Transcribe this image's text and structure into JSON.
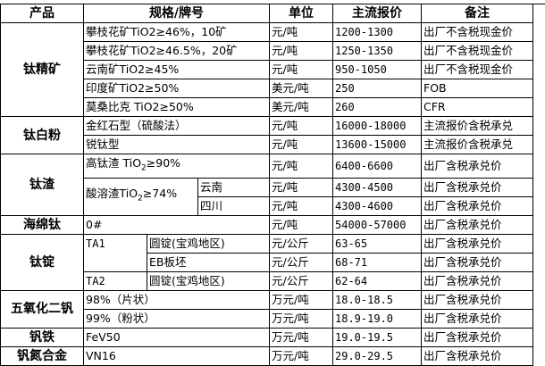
{
  "headers": [
    "产品",
    "规格/牌号",
    "单位",
    "主流报价",
    "备注"
  ],
  "groups": {
    "titanium_concentrate": {
      "product": "钛精矿",
      "rows": [
        {
          "spec": "攀枝花矿TiO2≥46%，10矿",
          "unit": "元/吨",
          "price": "1200-1300",
          "note": "出厂不含税现金价"
        },
        {
          "spec": "攀枝花矿TiO2≥46.5%，20矿",
          "unit": "元/吨",
          "price": "1250-1350",
          "note": "出厂不含税现金价"
        },
        {
          "spec": "云南矿TiO2≥45%",
          "unit": "元/吨",
          "price": "950-1050",
          "note": "出厂不含税现金价"
        },
        {
          "spec": "印度矿TiO2≥50%",
          "unit": "美元/吨",
          "price": "250",
          "note": "FOB"
        },
        {
          "spec": "莫桑比克 TiO2≥50%",
          "unit": "美元/吨",
          "price": "260",
          "note": "CFR"
        }
      ]
    },
    "titanium_dioxide": {
      "product": "钛白粉",
      "rows": [
        {
          "spec": "金红石型（硫酸法）",
          "unit": "元/吨",
          "price": "16000-18000",
          "note": "主流报价含税承兑"
        },
        {
          "spec": "锐钛型",
          "unit": "元/吨",
          "price": "13600-15000",
          "note": "主流报价含税承兑"
        }
      ]
    },
    "titanium_slag": {
      "product": "钛渣",
      "rows": [
        {
          "spec": "高钛渣 TiO",
          "sub": "2",
          "spec_tail": "≥90%",
          "unit": "元/吨",
          "price": "6400-6600",
          "note": "出厂含税承兑价"
        },
        {
          "spec": "酸溶渣TiO",
          "sub": "2",
          "spec_tail": "≥74%",
          "region": "云南",
          "unit": "元/吨",
          "price": "4300-4500",
          "note": "出厂含税承兑价"
        },
        {
          "region": "四川",
          "unit": "元/吨",
          "price": "4300-4600",
          "note": "出厂含税承兑价"
        }
      ]
    },
    "sponge_titanium": {
      "product": "海绵钛",
      "rows": [
        {
          "spec": "0#",
          "unit": "元/吨",
          "price": "54000-57000",
          "note": "出厂含税承兑价"
        }
      ]
    },
    "titanium_ingot": {
      "product": "钛锭",
      "rows": [
        {
          "grade": "TA1",
          "form": "圆锭(宝鸡地区)",
          "unit": "元/公斤",
          "price": "63-65",
          "note": "出厂含税承兑价"
        },
        {
          "form": "EB板坯",
          "unit": "元/公斤",
          "price": "68-71",
          "note": "出厂含税承兑价"
        },
        {
          "grade": "TA2",
          "form": "圆锭(宝鸡地区)",
          "unit": "元/公斤",
          "price": "62-64",
          "note": "出厂含税承兑价"
        }
      ]
    },
    "vanadium_pentoxide": {
      "product": "五氧化二钒",
      "rows": [
        {
          "spec": "98%（片状）",
          "unit": "万元/吨",
          "price": "18.0-18.5",
          "note": "出厂含税承兑价"
        },
        {
          "spec": "99%（粉状）",
          "unit": "万元/吨",
          "price": "18.9-19.0",
          "note": "出厂含税承兑价"
        }
      ]
    },
    "ferrovanadium": {
      "product": "钒铁",
      "rows": [
        {
          "spec": "FeV50",
          "unit": "万元/吨",
          "price": "19.0-19.5",
          "note": "出厂含税承兑价"
        }
      ]
    },
    "vanadium_nitrogen": {
      "product": "钒氮合金",
      "rows": [
        {
          "spec": "VN16",
          "unit": "万元/吨",
          "price": "29.0-29.5",
          "note": "出厂含税承兑价"
        }
      ]
    }
  }
}
